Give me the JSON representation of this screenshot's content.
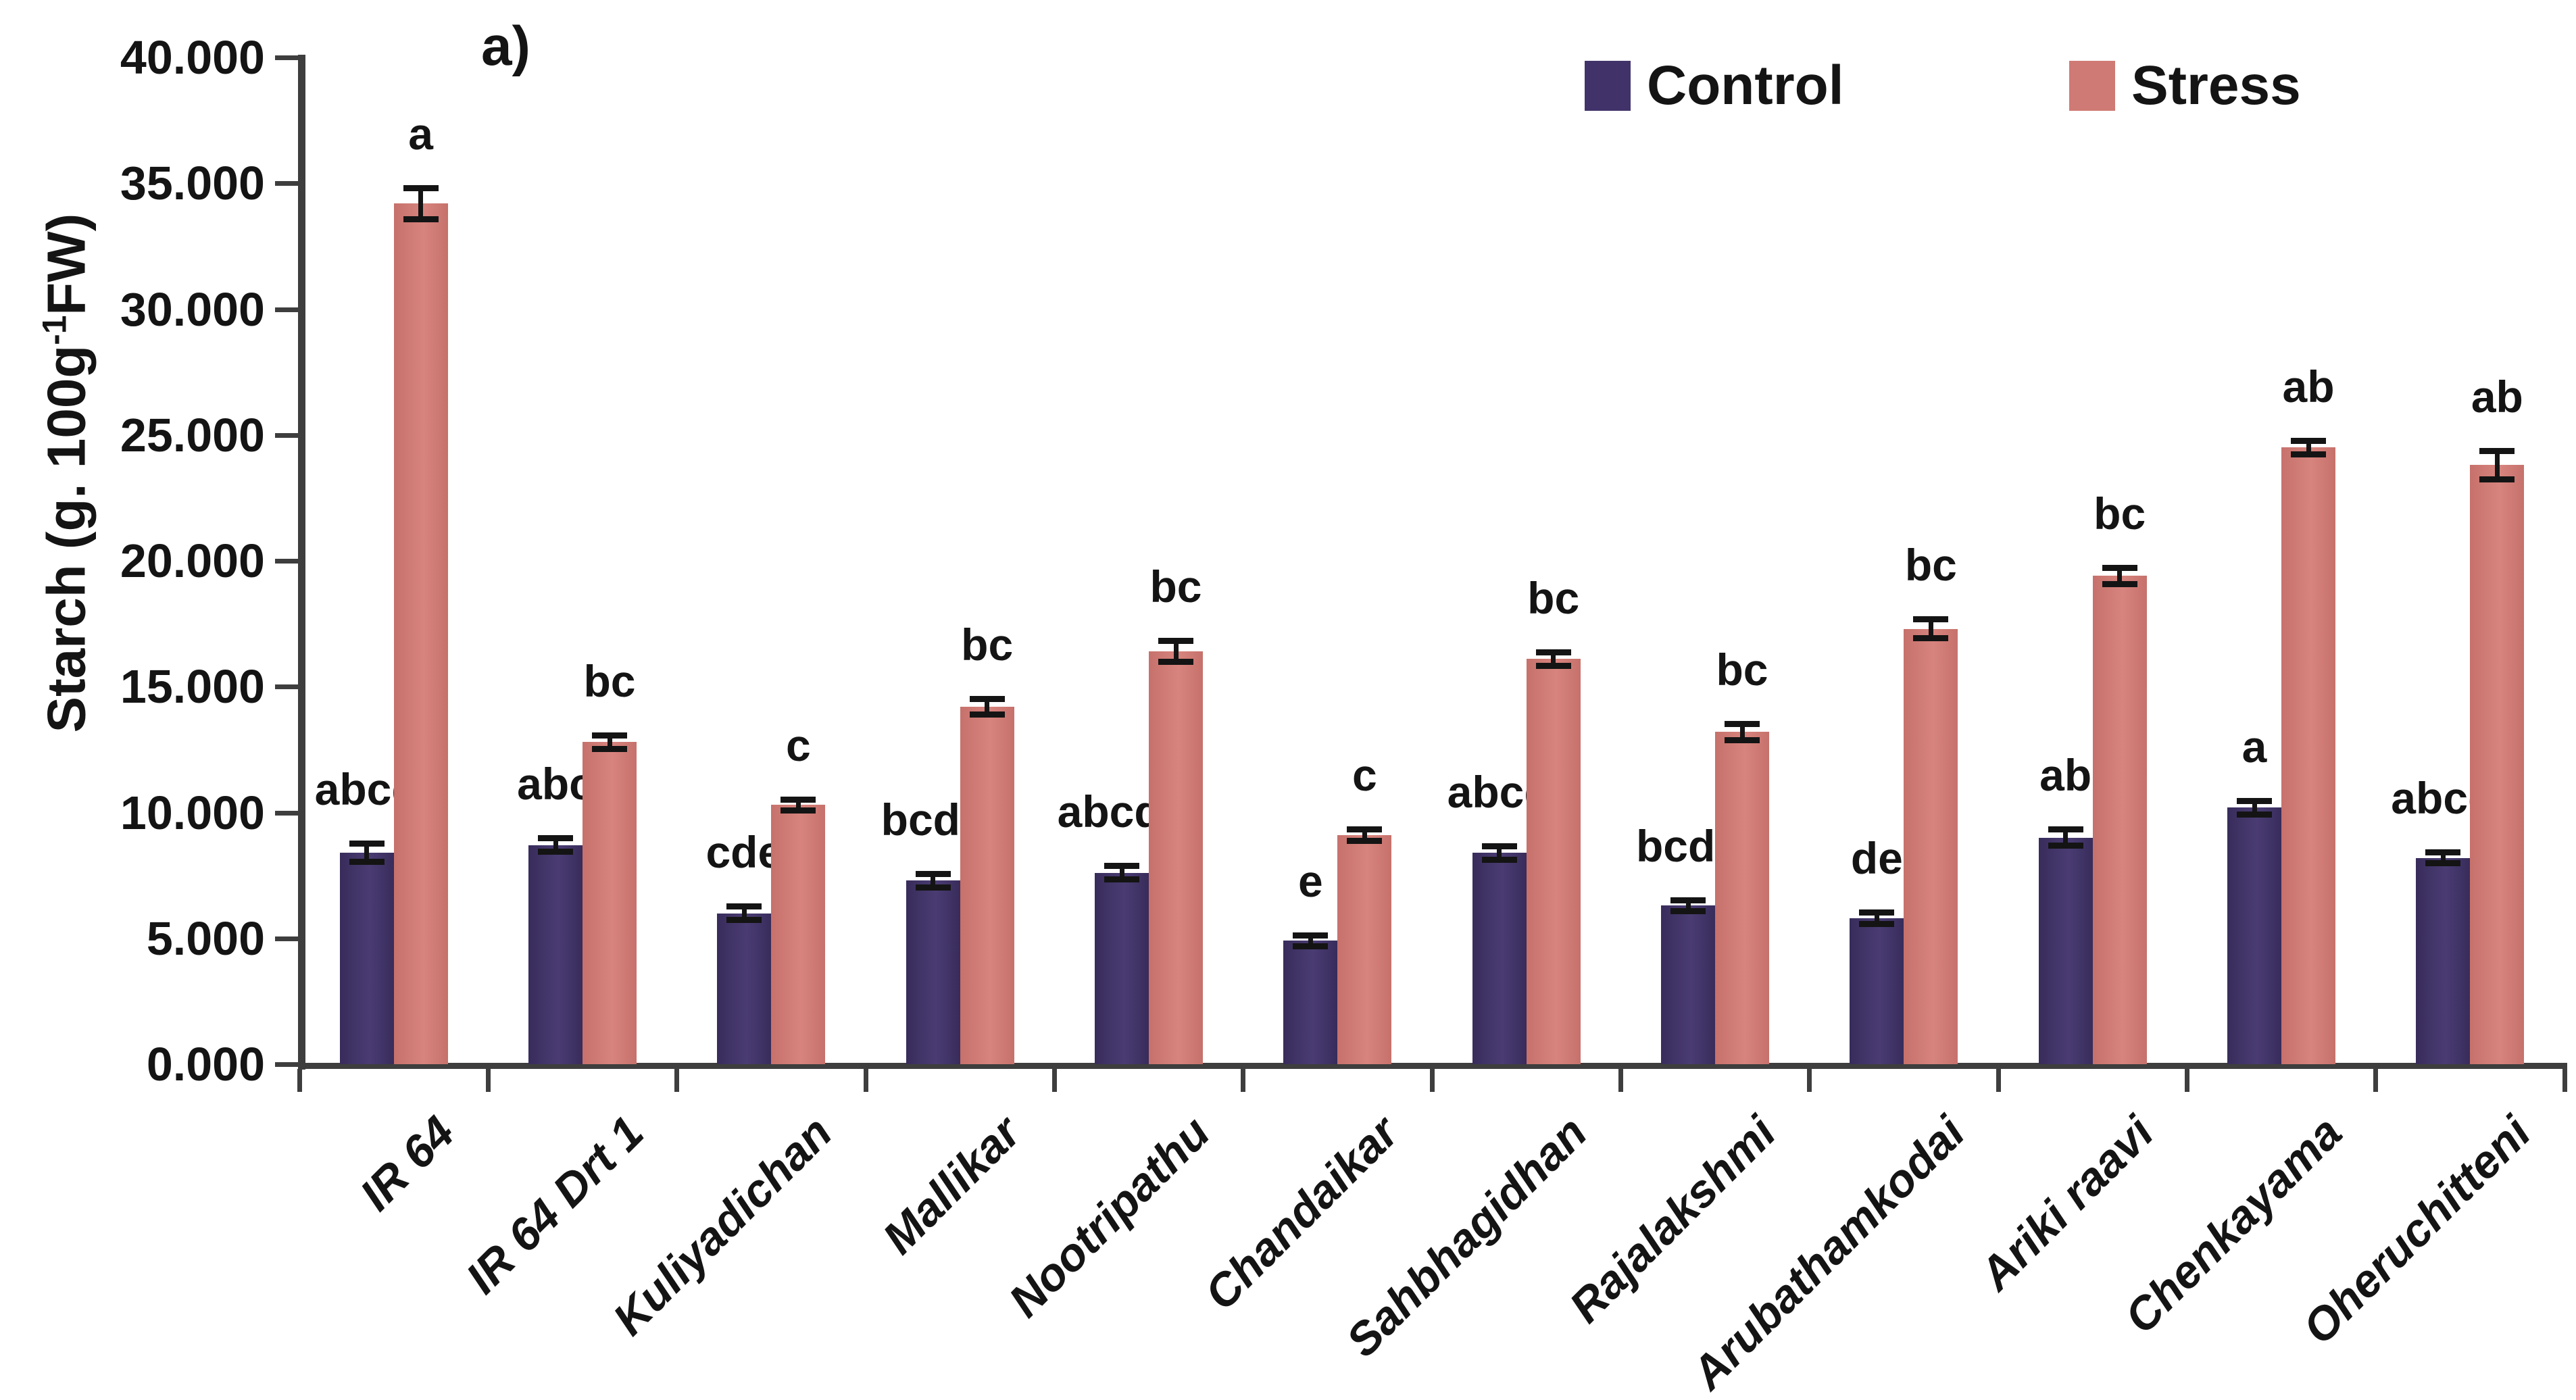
{
  "title": "a)",
  "ylabel": {
    "prefix": "Starch  (g. 100g",
    "sup": "-1",
    "suffix": "FW)"
  },
  "colors": {
    "axis": "#3e3e3e",
    "control": "#41336a",
    "stress": "#cf7a74",
    "error_bar": "#141414",
    "text": "#141414"
  },
  "legend": {
    "items": [
      {
        "label": "Control",
        "color": "#41336a"
      },
      {
        "label": "Stress",
        "color": "#cf7a74"
      }
    ]
  },
  "chart_data": {
    "type": "bar",
    "title": "a)",
    "xlabel": "",
    "ylabel": "Starch (g. 100g-1FW)",
    "ylim": [
      0,
      40
    ],
    "ytick_step": 5,
    "ytick_labels": [
      "0.000",
      "5.000",
      "10.000",
      "15.000",
      "20.000",
      "25.000",
      "30.000",
      "35.000",
      "40.000"
    ],
    "grid": false,
    "legend_position": "top-right",
    "categories": [
      "IR 64",
      "IR 64 Drt 1",
      "Kuliyadichan",
      "Mallikar",
      "Nootripathu",
      "Chandaikar",
      "Sahbhagidhan",
      "Rajalakshmi",
      "Arubathamkodai",
      "Ariki raavi",
      "Chenkayama",
      "Oheruchitteni"
    ],
    "series": [
      {
        "name": "Control",
        "color": "#41336a",
        "values": [
          8.4,
          8.7,
          6.0,
          7.3,
          7.6,
          4.9,
          8.4,
          6.3,
          5.8,
          9.0,
          10.2,
          8.2
        ],
        "errors": [
          0.3,
          0.2,
          0.2,
          0.2,
          0.2,
          0.15,
          0.2,
          0.15,
          0.15,
          0.25,
          0.2,
          0.15
        ],
        "letters": [
          "abcd",
          "abc",
          "cde",
          "bcde",
          "abcde",
          "e",
          "abcd",
          "bcde",
          "de",
          "ab",
          "a",
          "abcd"
        ]
      },
      {
        "name": "Stress",
        "color": "#cf7a74",
        "values": [
          34.2,
          12.8,
          10.3,
          14.2,
          16.4,
          9.1,
          16.1,
          13.2,
          17.3,
          19.4,
          24.5,
          23.8
        ],
        "errors": [
          0.55,
          0.2,
          0.15,
          0.25,
          0.35,
          0.15,
          0.2,
          0.25,
          0.3,
          0.25,
          0.2,
          0.5
        ],
        "letters": [
          "a",
          "bc",
          "c",
          "bc",
          "bc",
          "c",
          "bc",
          "bc",
          "bc",
          "bc",
          "ab",
          "ab"
        ]
      }
    ]
  }
}
